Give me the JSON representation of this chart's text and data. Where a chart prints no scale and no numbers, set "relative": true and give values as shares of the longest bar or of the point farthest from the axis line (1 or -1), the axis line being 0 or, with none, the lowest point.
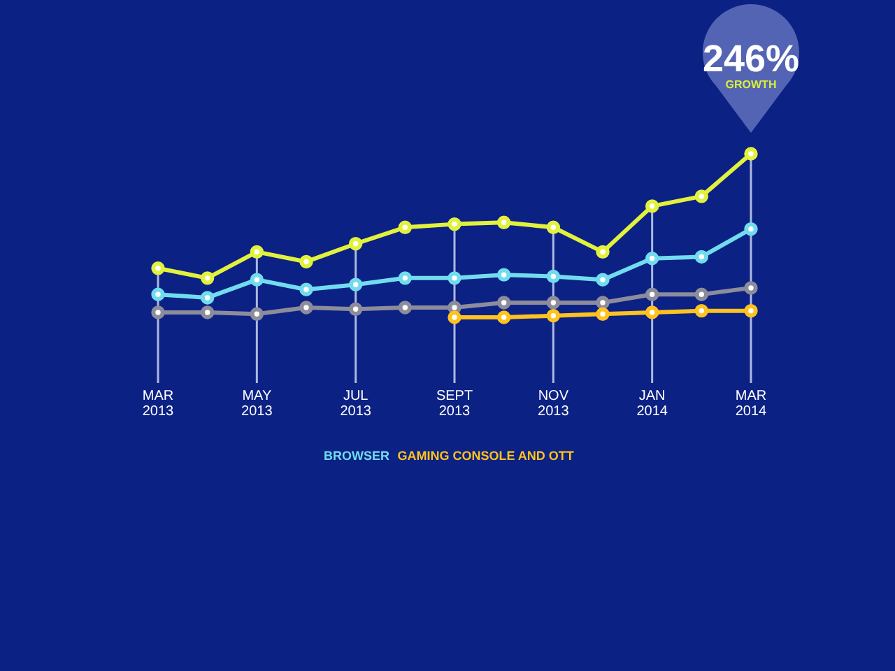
{
  "chart_data": {
    "type": "line",
    "relative": true,
    "categories": [
      "MAR 2013",
      null,
      "MAY 2013",
      null,
      "JUL 2013",
      null,
      "SEPT 2013",
      null,
      "NOV 2013",
      null,
      "JAN 2014",
      null,
      "MAR 2014"
    ],
    "series": [
      {
        "name": "BROWSER",
        "color": "#72dcef",
        "values": [
          0.14,
          0.12,
          0.23,
          0.17,
          0.2,
          0.24,
          0.24,
          0.26,
          0.25,
          0.23,
          0.36,
          0.37,
          0.54
        ]
      },
      {
        "color": "#e2f23c",
        "values": [
          0.3,
          0.24,
          0.4,
          0.34,
          0.45,
          0.55,
          0.57,
          0.58,
          0.55,
          0.4,
          0.68,
          0.74,
          1
        ]
      },
      {
        "color": "#8c8c9c",
        "values": [
          0.03,
          0.03,
          0.02,
          0.06,
          0.05,
          0.06,
          0.06,
          0.09,
          0.09,
          0.09,
          0.14,
          0.14,
          0.18
        ]
      },
      {
        "name": "GAMING CONSOLE AND OTT",
        "color": "#ffc21e",
        "values": [
          null,
          null,
          null,
          null,
          null,
          null,
          0,
          0,
          0.01,
          0.02,
          0.03,
          0.04,
          0.04
        ]
      }
    ],
    "annotations": [
      {
        "text": "246%",
        "x": "MAR 2014",
        "y": 1
      },
      "GROWTH"
    ],
    "grid": "x",
    "legend": "bottom",
    "marker": "circle",
    "line_style": "solid"
  }
}
